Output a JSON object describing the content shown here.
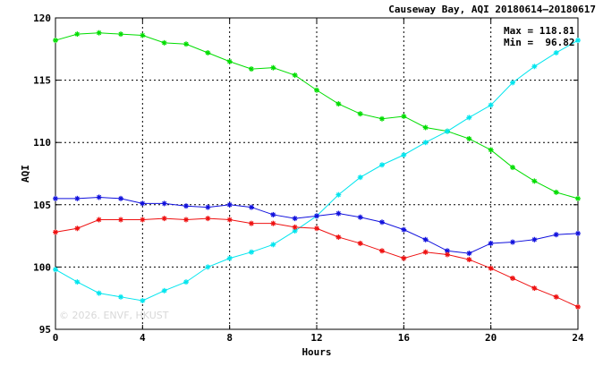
{
  "title": "Causeway Bay, AQI 20180614–20180617",
  "stats": {
    "max_label": "Max =",
    "max_value": "118.81",
    "min_label": "Min =",
    "min_value": "96.82"
  },
  "watermark": "© 2026. ENVF, HKUST",
  "chart_data": {
    "type": "line",
    "title": "Causeway Bay, AQI 20180614–20180617",
    "xlabel": "Hours",
    "ylabel": "AQI",
    "xlim": [
      0,
      24
    ],
    "ylim": [
      95,
      120
    ],
    "x_ticks": [
      0,
      4,
      8,
      12,
      16,
      20,
      24
    ],
    "y_ticks": [
      95,
      100,
      105,
      110,
      115,
      120
    ],
    "grid": true,
    "x": [
      0,
      1,
      2,
      3,
      4,
      5,
      6,
      7,
      8,
      9,
      10,
      11,
      12,
      13,
      14,
      15,
      16,
      17,
      18,
      19,
      20,
      21,
      22,
      23,
      24
    ],
    "series": [
      {
        "color": "#00dd00",
        "values": [
          118.2,
          118.7,
          118.8,
          118.7,
          118.6,
          118.0,
          117.9,
          117.2,
          116.5,
          115.9,
          116.0,
          115.4,
          114.2,
          113.1,
          112.3,
          111.9,
          112.1,
          111.2,
          110.9,
          110.3,
          109.4,
          108.0,
          106.9,
          106.0,
          105.5
        ]
      },
      {
        "color": "#00e5ee",
        "values": [
          99.8,
          98.8,
          97.9,
          97.6,
          97.3,
          98.1,
          98.8,
          100.0,
          100.7,
          101.2,
          101.8,
          102.9,
          104.1,
          105.8,
          107.2,
          108.2,
          109.0,
          110.0,
          110.9,
          112.0,
          113.0,
          114.8,
          116.1,
          117.2,
          118.2
        ]
      },
      {
        "color": "#1010dd",
        "values": [
          105.5,
          105.5,
          105.6,
          105.5,
          105.1,
          105.1,
          104.9,
          104.8,
          105.0,
          104.8,
          104.2,
          103.9,
          104.1,
          104.3,
          104.0,
          103.6,
          103.0,
          102.2,
          101.3,
          101.1,
          101.9,
          102.0,
          102.2,
          102.6,
          102.7
        ]
      },
      {
        "color": "#ee1010",
        "values": [
          102.8,
          103.1,
          103.8,
          103.8,
          103.8,
          103.9,
          103.8,
          103.9,
          103.8,
          103.5,
          103.5,
          103.2,
          103.1,
          102.4,
          101.9,
          101.3,
          100.7,
          101.2,
          101.0,
          100.6,
          99.9,
          99.1,
          98.3,
          97.6,
          96.8
        ]
      }
    ]
  }
}
